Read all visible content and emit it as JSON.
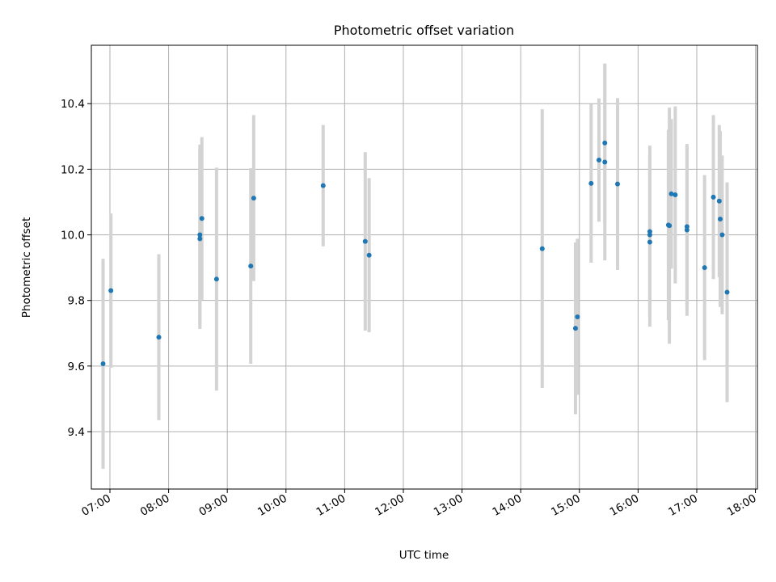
{
  "chart_data": {
    "type": "scatter",
    "title": "Photometric offset variation",
    "xlabel": "UTC time",
    "ylabel": "Photometric offset",
    "x_ticks": [
      "07:00",
      "08:00",
      "09:00",
      "10:00",
      "11:00",
      "12:00",
      "13:00",
      "14:00",
      "15:00",
      "16:00",
      "17:00",
      "18:00"
    ],
    "y_ticks": [
      "9.4",
      "9.6",
      "9.8",
      "10.0",
      "10.2",
      "10.4"
    ],
    "xlim": [
      "06:41",
      "18:02"
    ],
    "ylim": [
      9.225,
      10.578
    ],
    "grid": true,
    "point_color": "#1f77b4",
    "errorbar_color": "#d3d3d3",
    "series": [
      {
        "points": [
          {
            "x": "06:53",
            "y": 9.607,
            "err": 0.32
          },
          {
            "x": "07:01",
            "y": 9.83,
            "err": 0.235
          },
          {
            "x": "07:50",
            "y": 9.688,
            "err": 0.253
          },
          {
            "x": "08:32",
            "y": 10.0,
            "err": 0.275
          },
          {
            "x": "08:32",
            "y": 9.988,
            "err": 0.275
          },
          {
            "x": "08:34",
            "y": 10.05,
            "err": 0.248
          },
          {
            "x": "08:49",
            "y": 9.865,
            "err": 0.34
          },
          {
            "x": "09:24",
            "y": 9.905,
            "err": 0.298
          },
          {
            "x": "09:27",
            "y": 10.112,
            "err": 0.253
          },
          {
            "x": "10:38",
            "y": 10.15,
            "err": 0.185
          },
          {
            "x": "11:21",
            "y": 9.98,
            "err": 0.272
          },
          {
            "x": "11:25",
            "y": 9.938,
            "err": 0.235
          },
          {
            "x": "14:22",
            "y": 9.958,
            "err": 0.425
          },
          {
            "x": "14:56",
            "y": 9.715,
            "err": 0.262
          },
          {
            "x": "14:58",
            "y": 9.75,
            "err": 0.238
          },
          {
            "x": "15:12",
            "y": 10.157,
            "err": 0.242
          },
          {
            "x": "15:20",
            "y": 10.228,
            "err": 0.188
          },
          {
            "x": "15:26",
            "y": 10.28,
            "err": 0.242
          },
          {
            "x": "15:26",
            "y": 10.222,
            "err": 0.3
          },
          {
            "x": "15:39",
            "y": 10.155,
            "err": 0.262
          },
          {
            "x": "16:12",
            "y": 10.01,
            "err": 0.262
          },
          {
            "x": "16:12",
            "y": 10.0,
            "err": 0.242
          },
          {
            "x": "16:12",
            "y": 9.978,
            "err": 0.258
          },
          {
            "x": "16:31",
            "y": 10.03,
            "err": 0.29
          },
          {
            "x": "16:32",
            "y": 10.028,
            "err": 0.36
          },
          {
            "x": "16:34",
            "y": 10.125,
            "err": 0.228
          },
          {
            "x": "16:38",
            "y": 10.122,
            "err": 0.27
          },
          {
            "x": "16:50",
            "y": 10.025,
            "err": 0.242
          },
          {
            "x": "16:50",
            "y": 10.015,
            "err": 0.262
          },
          {
            "x": "17:08",
            "y": 9.9,
            "err": 0.282
          },
          {
            "x": "17:17",
            "y": 10.115,
            "err": 0.25
          },
          {
            "x": "17:23",
            "y": 10.103,
            "err": 0.232
          },
          {
            "x": "17:24",
            "y": 10.048,
            "err": 0.268
          },
          {
            "x": "17:26",
            "y": 10.0,
            "err": 0.242
          },
          {
            "x": "17:31",
            "y": 9.825,
            "err": 0.335
          }
        ]
      }
    ]
  }
}
